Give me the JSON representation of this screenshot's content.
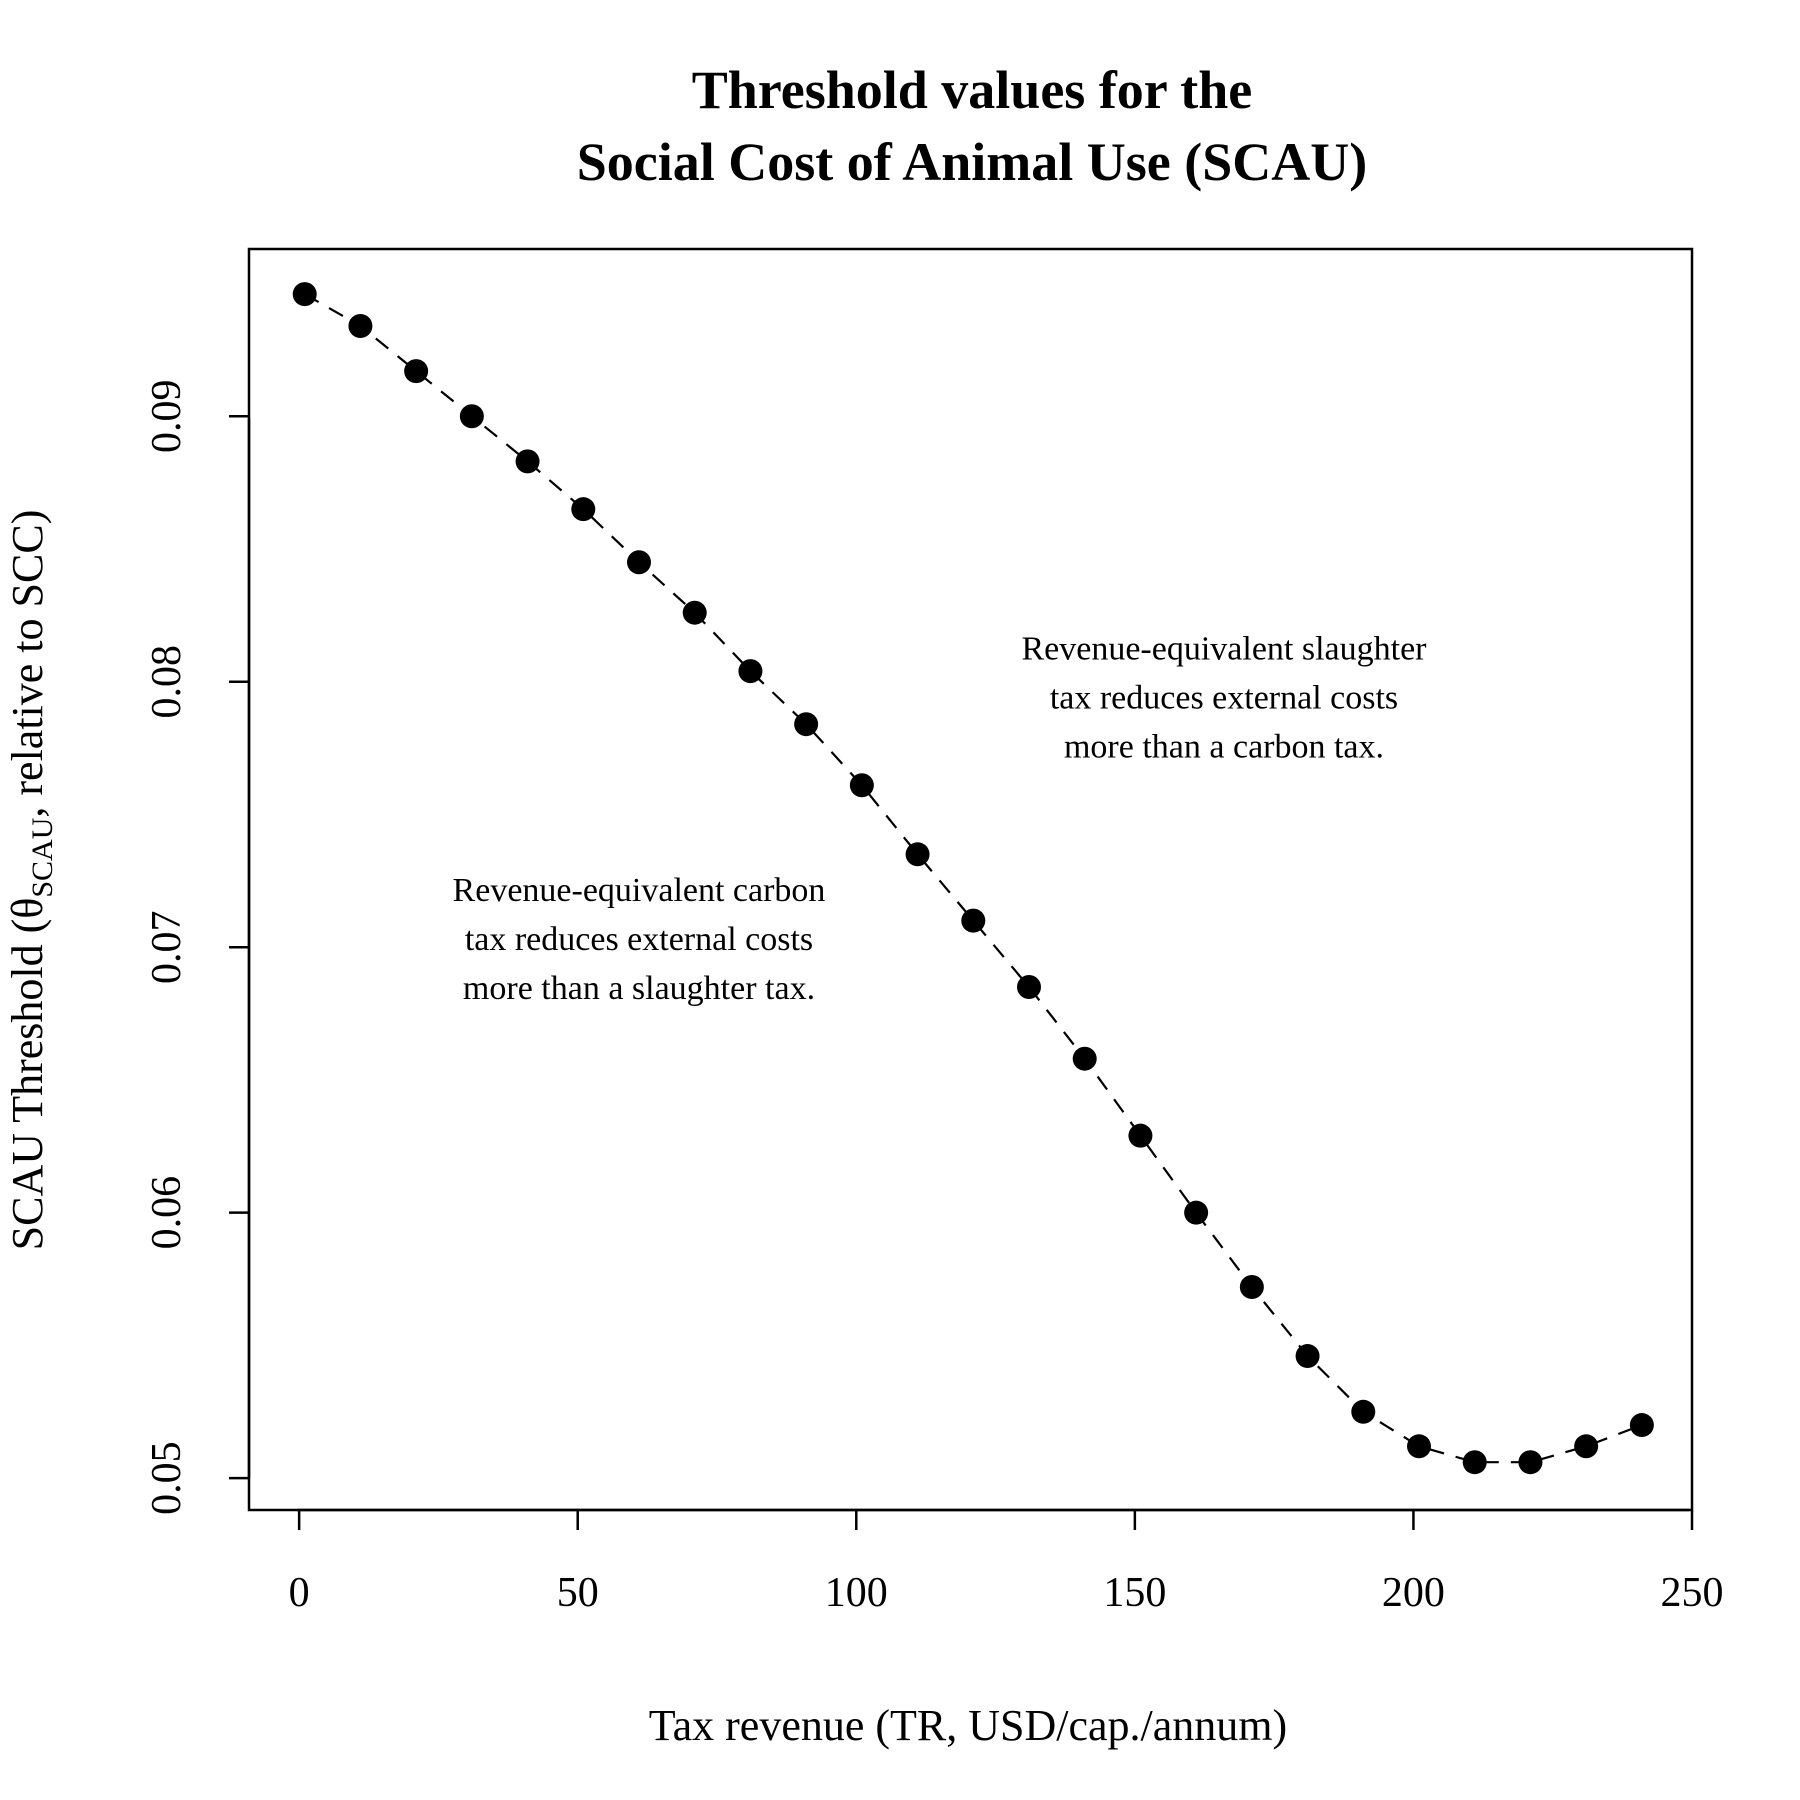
{
  "chart_data": {
    "type": "scatter",
    "title_lines": [
      "Threshold values for the",
      "Social Cost of Animal Use (SCAU)"
    ],
    "xlabel": "Tax revenue (TR, USD/cap./annum)",
    "ylabel_parts": {
      "before": "SCAU Threshold (",
      "symbol": "θ",
      "subscript": "SCAU",
      "after": ", relative to SCC)"
    },
    "xlim": [
      -9,
      250
    ],
    "ylim": [
      0.0488,
      0.0963
    ],
    "x_ticks": [
      0,
      50,
      100,
      150,
      200,
      250
    ],
    "x_tick_labels": [
      "0",
      "50",
      "100",
      "150",
      "200",
      "250"
    ],
    "y_ticks": [
      0.05,
      0.06,
      0.07,
      0.08,
      0.09
    ],
    "y_tick_labels": [
      "0.05",
      "0.06",
      "0.07",
      "0.08",
      "0.09"
    ],
    "grid": false,
    "line_style": "dashed",
    "marker": "filled-circle",
    "color": "#000000",
    "series": [
      {
        "x": [
          1,
          11,
          21,
          31,
          41,
          51,
          61,
          71,
          81,
          91,
          101,
          111,
          121,
          131,
          141,
          151,
          161,
          171,
          181,
          191,
          201,
          211,
          221,
          231,
          241
        ],
        "y": [
          0.0946,
          0.0934,
          0.0917,
          0.09,
          0.0883,
          0.0865,
          0.0845,
          0.0826,
          0.0804,
          0.0784,
          0.0761,
          0.0735,
          0.071,
          0.0685,
          0.0658,
          0.0629,
          0.06,
          0.0572,
          0.0546,
          0.0525,
          0.0512,
          0.0506,
          0.0506,
          0.0512,
          0.052
        ]
      }
    ],
    "annotations": [
      {
        "lines": [
          "Revenue-equivalent slaughter",
          "tax reduces external costs",
          "more than a carbon tax."
        ],
        "x": 166,
        "y": 0.079
      },
      {
        "lines": [
          "Revenue-equivalent carbon",
          "tax reduces external costs",
          "more than a slaughter tax."
        ],
        "x": 61,
        "y": 0.0699
      }
    ]
  }
}
